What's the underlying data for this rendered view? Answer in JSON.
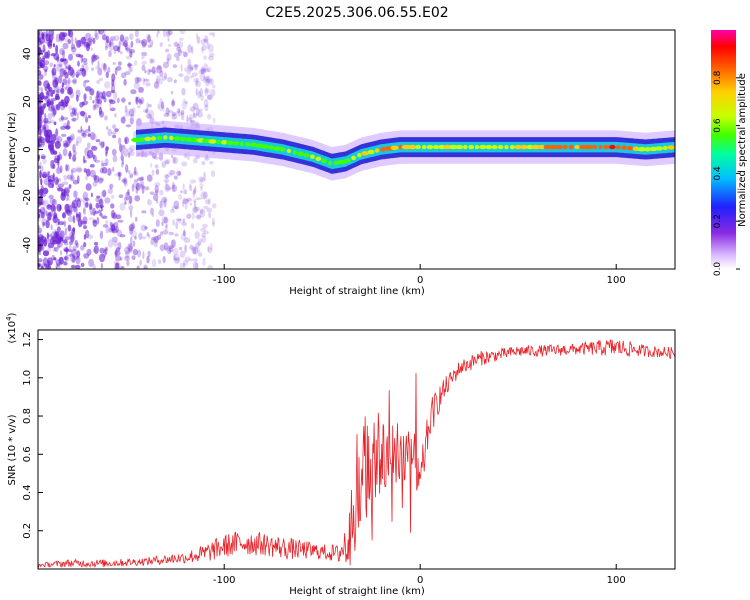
{
  "page_title": "C2E5.2025.306.06.55.E02",
  "colors": {
    "snr_line": "#e8242a",
    "axis": "#000000",
    "speckle": "#6a1fd6",
    "ridge_edge": "#2a2ad8",
    "ridge_mid": "#16d8e0",
    "ridge_core": "#ff2020"
  },
  "chart_data": [
    {
      "type": "heatmap",
      "title": "C2E5.2025.306.06.55.E02",
      "xlabel": "Height of straight line (km)",
      "ylabel": "Frequency (Hz)",
      "xlim": [
        -195,
        130
      ],
      "ylim": [
        -50,
        50
      ],
      "xticks": [
        -100,
        0,
        100
      ],
      "yticks": [
        -40,
        -20,
        0,
        20,
        40
      ],
      "colorbar": {
        "label": "Normalized spectral amplitude",
        "range": [
          0.0,
          1.0
        ],
        "ticks": [
          0.0,
          0.2,
          0.4,
          0.6,
          0.8
        ],
        "tick_labels": [
          "0.0",
          "0.2",
          "0.4",
          "0.6",
          "0.8"
        ],
        "colors": [
          "#ffffff",
          "#d9b8ff",
          "#8a2be2",
          "#2020ff",
          "#00c0ff",
          "#00ffa0",
          "#40ff00",
          "#c8ff00",
          "#ffd000",
          "#ff6000",
          "#ff0000",
          "#ff00aa"
        ]
      },
      "ridge": {
        "x": [
          -145,
          -130,
          -115,
          -100,
          -85,
          -70,
          -55,
          -45,
          -38,
          -30,
          -20,
          -10,
          0,
          20,
          40,
          60,
          80,
          100,
          115,
          130
        ],
        "freq": [
          4,
          5,
          4,
          3,
          2,
          0,
          -3,
          -6,
          -5,
          -2,
          0,
          1,
          1,
          1,
          1,
          1,
          1,
          1,
          0,
          1
        ],
        "amplitude": [
          0.45,
          0.55,
          0.5,
          0.5,
          0.45,
          0.5,
          0.55,
          0.45,
          0.5,
          0.6,
          0.75,
          0.85,
          0.65,
          0.55,
          0.6,
          0.7,
          0.85,
          0.95,
          0.55,
          0.65
        ]
      }
    },
    {
      "type": "line",
      "xlabel": "Height of straight line (km)",
      "ylabel": "SNR (10 * v/v)",
      "y_scale_label": "(x10",
      "y_scale_exp": "4",
      "y_scale_suffix": ")",
      "xlim": [
        -195,
        130
      ],
      "ylim": [
        0,
        1.25
      ],
      "xticks": [
        -100,
        0,
        100
      ],
      "yticks": [
        0.2,
        0.4,
        0.6,
        0.8,
        1.0,
        1.2
      ],
      "ytick_labels": [
        "0.2",
        "0.4",
        "0.6",
        "0.8",
        "1.0",
        "1.2"
      ],
      "series": [
        {
          "name": "SNR",
          "x": [
            -195,
            -180,
            -160,
            -140,
            -120,
            -110,
            -100,
            -90,
            -80,
            -70,
            -60,
            -50,
            -42,
            -36,
            -32,
            -28,
            -24,
            -20,
            -16,
            -12,
            -8,
            -4,
            0,
            5,
            10,
            15,
            20,
            30,
            40,
            50,
            60,
            80,
            100,
            115,
            130
          ],
          "y": [
            0.02,
            0.03,
            0.03,
            0.04,
            0.06,
            0.08,
            0.12,
            0.14,
            0.13,
            0.11,
            0.1,
            0.09,
            0.08,
            0.15,
            0.4,
            0.55,
            0.5,
            0.62,
            0.55,
            0.65,
            0.58,
            0.62,
            0.45,
            0.78,
            0.9,
            0.98,
            1.05,
            1.1,
            1.12,
            1.14,
            1.14,
            1.15,
            1.16,
            1.14,
            1.13
          ],
          "noise": [
            0.01,
            0.02,
            0.02,
            0.02,
            0.03,
            0.05,
            0.06,
            0.07,
            0.06,
            0.06,
            0.05,
            0.04,
            0.05,
            0.18,
            0.3,
            0.28,
            0.25,
            0.25,
            0.22,
            0.2,
            0.18,
            0.15,
            0.12,
            0.1,
            0.07,
            0.05,
            0.04,
            0.04,
            0.03,
            0.03,
            0.03,
            0.03,
            0.05,
            0.03,
            0.03
          ]
        }
      ]
    }
  ]
}
